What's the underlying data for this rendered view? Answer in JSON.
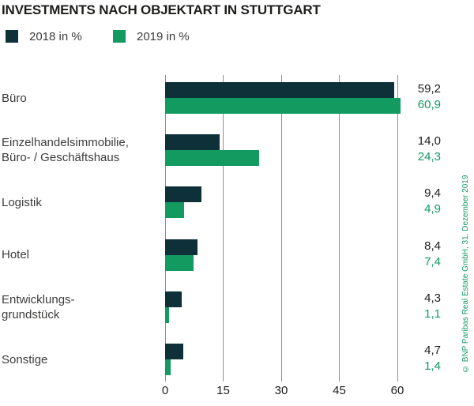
{
  "title": "INVESTMENTS NACH OBJEKTART IN STUTTGART",
  "footnote": "© BNP Paribas Real Estate GmbH, 31. Dezember 2019",
  "colors": {
    "series_2018": "#0e3038",
    "series_2019": "#129a61",
    "title_text": "#1d1d1b",
    "label_text": "#3c3c3b",
    "gridline": "#8f8f8f"
  },
  "chart_data": {
    "type": "bar",
    "orientation": "horizontal",
    "title": "INVESTMENTS NACH OBJEKTART IN STUTTGART",
    "categories": [
      "Büro",
      "Einzelhandelsimmobilie,\nBüro- / Geschäftshaus",
      "Logistik",
      "Hotel",
      "Entwicklungs-\ngrundstück",
      "Sonstige"
    ],
    "series": [
      {
        "name": "2018 in %",
        "color": "#0e3038",
        "values": [
          59.2,
          14.0,
          9.4,
          8.4,
          4.3,
          4.7
        ],
        "labels": [
          "59,2",
          "14,0",
          "9,4",
          "8,4",
          "4,3",
          "4,7"
        ]
      },
      {
        "name": "2019 in %",
        "color": "#129a61",
        "values": [
          60.9,
          24.3,
          4.9,
          7.4,
          1.1,
          1.4
        ],
        "labels": [
          "60,9",
          "24,3",
          "4,9",
          "7,4",
          "1,1",
          "1,4"
        ]
      }
    ],
    "x_ticks": [
      "0",
      "15",
      "30",
      "45",
      "60"
    ],
    "x_tick_values": [
      0,
      15,
      30,
      45,
      60
    ],
    "xlim": [
      0,
      62
    ],
    "grid": true,
    "legend_position": "top-left"
  }
}
